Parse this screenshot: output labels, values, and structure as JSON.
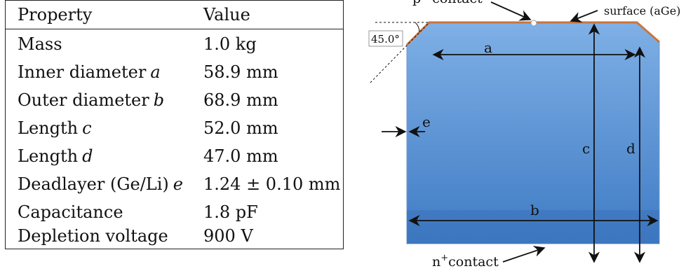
{
  "table": {
    "header": {
      "property": "Property",
      "value": "Value"
    },
    "rows": [
      {
        "property": "Mass",
        "symbol": "",
        "value": "1.0 kg"
      },
      {
        "property": "Inner diameter",
        "symbol": "a",
        "value": "58.9 mm"
      },
      {
        "property": "Outer diameter",
        "symbol": "b",
        "value": "68.9 mm"
      },
      {
        "property": "Length",
        "symbol": "c",
        "value": "52.0 mm"
      },
      {
        "property": "Length",
        "symbol": "d",
        "value": "47.0 mm"
      },
      {
        "property": "Deadlayer (Ge/Li)",
        "symbol": "e",
        "value": "1.24 ± 0.10 mm"
      },
      {
        "property": "Capacitance",
        "symbol": "",
        "value": "1.8 pF"
      },
      {
        "property": "Depletion voltage",
        "symbol": "",
        "value": "900 V"
      }
    ]
  },
  "diagram": {
    "labels": {
      "p_contact": "p⁺ contact",
      "surface": "surface (aGe)",
      "angle": "45.0°",
      "a": "a",
      "b": "b",
      "c": "c",
      "d": "d",
      "e": "e",
      "n_contact_base": "n",
      "n_contact_sup": "+",
      "n_contact_word": "contact"
    },
    "colors": {
      "crystal_top": "#7fb0e6",
      "crystal_bottom": "#3f7bc4",
      "surface_line": "#c9753d",
      "arrow": "#111111"
    }
  }
}
